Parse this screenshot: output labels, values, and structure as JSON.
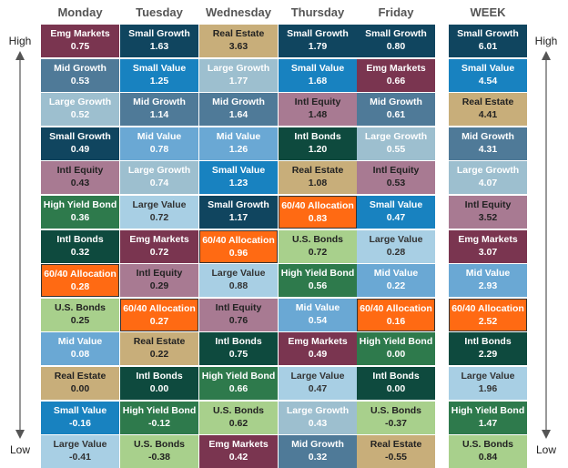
{
  "side_labels": {
    "high": "High",
    "low": "Low"
  },
  "columns": [
    "Monday",
    "Tuesday",
    "Wednesday",
    "Thursday",
    "Friday",
    "WEEK"
  ],
  "highlight_asset": "60/40 Allocation",
  "colors": {
    "Small Growth": {
      "bg": "#10455f",
      "fg": "#ffffff"
    },
    "Small Value": {
      "bg": "#1882c0",
      "fg": "#ffffff"
    },
    "Mid Growth": {
      "bg": "#4f7a98",
      "fg": "#ffffff"
    },
    "Mid Value": {
      "bg": "#6aa8d4",
      "fg": "#ffffff"
    },
    "Large Growth": {
      "bg": "#9dbfcf",
      "fg": "#ffffff"
    },
    "Large Value": {
      "bg": "#a8cfe4",
      "fg": "#333333"
    },
    "Emg Markets": {
      "bg": "#7a3550",
      "fg": "#ffffff"
    },
    "Intl Equity": {
      "bg": "#a87a92",
      "fg": "#222222"
    },
    "Real Estate": {
      "bg": "#c8ae7a",
      "fg": "#222222"
    },
    "High Yield Bond": {
      "bg": "#2e7a4c",
      "fg": "#ffffff"
    },
    "Intl Bonds": {
      "bg": "#0e4a3e",
      "fg": "#ffffff"
    },
    "U.S. Bonds": {
      "bg": "#a8d08c",
      "fg": "#222222"
    },
    "60/40 Allocation": {
      "bg": "#ff6a13",
      "fg": "#ffffff"
    }
  },
  "chart_data": {
    "type": "table",
    "columns": [
      {
        "name": "Monday",
        "cells": [
          {
            "asset": "Emg Markets",
            "value": "0.75"
          },
          {
            "asset": "Mid Growth",
            "value": "0.53"
          },
          {
            "asset": "Large Growth",
            "value": "0.52"
          },
          {
            "asset": "Small Growth",
            "value": "0.49"
          },
          {
            "asset": "Intl Equity",
            "value": "0.43"
          },
          {
            "asset": "High Yield Bond",
            "value": "0.36"
          },
          {
            "asset": "Intl Bonds",
            "value": "0.32"
          },
          {
            "asset": "60/40 Allocation",
            "value": "0.28"
          },
          {
            "asset": "U.S. Bonds",
            "value": "0.25"
          },
          {
            "asset": "Mid Value",
            "value": "0.08"
          },
          {
            "asset": "Real Estate",
            "value": "0.00"
          },
          {
            "asset": "Small Value",
            "value": "-0.16"
          },
          {
            "asset": "Large Value",
            "value": "-0.41"
          }
        ]
      },
      {
        "name": "Tuesday",
        "cells": [
          {
            "asset": "Small Growth",
            "value": "1.63"
          },
          {
            "asset": "Small Value",
            "value": "1.25"
          },
          {
            "asset": "Mid Growth",
            "value": "1.14"
          },
          {
            "asset": "Mid Value",
            "value": "0.78"
          },
          {
            "asset": "Large Growth",
            "value": "0.74"
          },
          {
            "asset": "Large Value",
            "value": "0.72"
          },
          {
            "asset": "Emg Markets",
            "value": "0.72"
          },
          {
            "asset": "Intl Equity",
            "value": "0.29"
          },
          {
            "asset": "60/40 Allocation",
            "value": "0.27"
          },
          {
            "asset": "Real Estate",
            "value": "0.22"
          },
          {
            "asset": "Intl Bonds",
            "value": "0.00"
          },
          {
            "asset": "High Yield Bond",
            "value": "-0.12"
          },
          {
            "asset": "U.S. Bonds",
            "value": "-0.38"
          }
        ]
      },
      {
        "name": "Wednesday",
        "cells": [
          {
            "asset": "Real Estate",
            "value": "3.63"
          },
          {
            "asset": "Large Growth",
            "value": "1.77"
          },
          {
            "asset": "Mid Growth",
            "value": "1.64"
          },
          {
            "asset": "Mid Value",
            "value": "1.26"
          },
          {
            "asset": "Small Value",
            "value": "1.23"
          },
          {
            "asset": "Small Growth",
            "value": "1.17"
          },
          {
            "asset": "60/40 Allocation",
            "value": "0.96"
          },
          {
            "asset": "Large Value",
            "value": "0.88"
          },
          {
            "asset": "Intl Equity",
            "value": "0.76"
          },
          {
            "asset": "Intl Bonds",
            "value": "0.75"
          },
          {
            "asset": "High Yield Bond",
            "value": "0.66"
          },
          {
            "asset": "U.S. Bonds",
            "value": "0.62"
          },
          {
            "asset": "Emg Markets",
            "value": "0.42"
          }
        ]
      },
      {
        "name": "Thursday",
        "cells": [
          {
            "asset": "Small Growth",
            "value": "1.79"
          },
          {
            "asset": "Small Value",
            "value": "1.68"
          },
          {
            "asset": "Intl Equity",
            "value": "1.48"
          },
          {
            "asset": "Intl Bonds",
            "value": "1.20"
          },
          {
            "asset": "Real Estate",
            "value": "1.08"
          },
          {
            "asset": "60/40 Allocation",
            "value": "0.83"
          },
          {
            "asset": "U.S. Bonds",
            "value": "0.72"
          },
          {
            "asset": "High Yield Bond",
            "value": "0.56"
          },
          {
            "asset": "Mid Value",
            "value": "0.54"
          },
          {
            "asset": "Emg Markets",
            "value": "0.49"
          },
          {
            "asset": "Large Value",
            "value": "0.47"
          },
          {
            "asset": "Large Growth",
            "value": "0.43"
          },
          {
            "asset": "Mid Growth",
            "value": "0.32"
          }
        ]
      },
      {
        "name": "Friday",
        "cells": [
          {
            "asset": "Small Growth",
            "value": "0.80"
          },
          {
            "asset": "Emg Markets",
            "value": "0.66"
          },
          {
            "asset": "Mid Growth",
            "value": "0.61"
          },
          {
            "asset": "Large Growth",
            "value": "0.55"
          },
          {
            "asset": "Intl Equity",
            "value": "0.53"
          },
          {
            "asset": "Small Value",
            "value": "0.47"
          },
          {
            "asset": "Large Value",
            "value": "0.28"
          },
          {
            "asset": "Mid Value",
            "value": "0.22"
          },
          {
            "asset": "60/40 Allocation",
            "value": "0.16"
          },
          {
            "asset": "High Yield Bond",
            "value": "0.00"
          },
          {
            "asset": "Intl Bonds",
            "value": "0.00"
          },
          {
            "asset": "U.S. Bonds",
            "value": "-0.37"
          },
          {
            "asset": "Real Estate",
            "value": "-0.55"
          }
        ]
      },
      {
        "name": "WEEK",
        "cells": [
          {
            "asset": "Small Growth",
            "value": "6.01"
          },
          {
            "asset": "Small Value",
            "value": "4.54"
          },
          {
            "asset": "Real Estate",
            "value": "4.41"
          },
          {
            "asset": "Mid Growth",
            "value": "4.31"
          },
          {
            "asset": "Large Growth",
            "value": "4.07"
          },
          {
            "asset": "Intl Equity",
            "value": "3.52"
          },
          {
            "asset": "Emg Markets",
            "value": "3.07"
          },
          {
            "asset": "Mid Value",
            "value": "2.93"
          },
          {
            "asset": "60/40 Allocation",
            "value": "2.52"
          },
          {
            "asset": "Intl Bonds",
            "value": "2.29"
          },
          {
            "asset": "Large Value",
            "value": "1.96"
          },
          {
            "asset": "High Yield Bond",
            "value": "1.47"
          },
          {
            "asset": "U.S. Bonds",
            "value": "0.84"
          }
        ]
      }
    ]
  }
}
